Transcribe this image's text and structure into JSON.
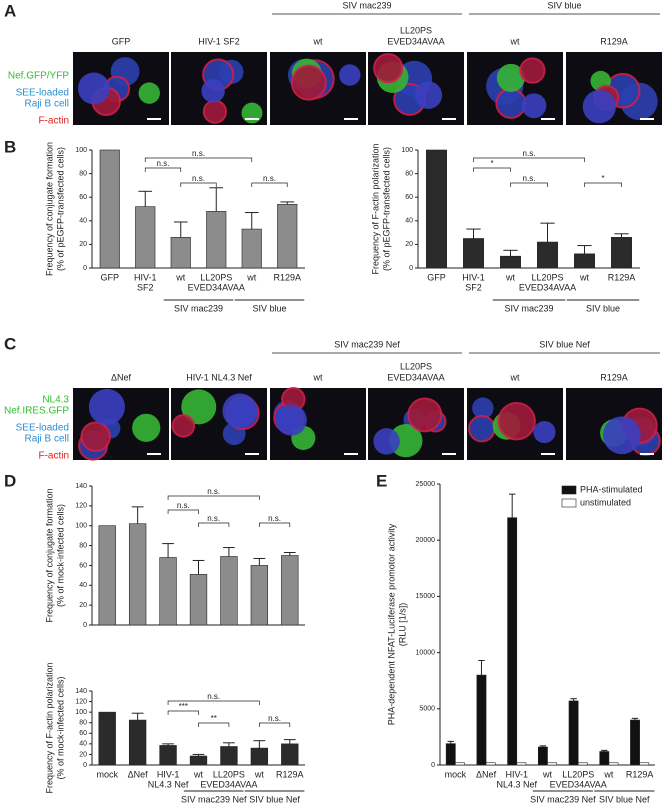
{
  "panels": {
    "a": "A",
    "b": "B",
    "c": "C",
    "d": "D",
    "e": "E"
  },
  "micrographs_a": {
    "groups": [
      "SIV mac239",
      "SIV blue"
    ],
    "labels": [
      [
        "GFP"
      ],
      [
        "HIV-1 SF2"
      ],
      [
        "wt"
      ],
      [
        "LL20PS",
        "EVED34AVAA"
      ],
      [
        "wt"
      ],
      [
        "R129A"
      ]
    ],
    "legend": [
      {
        "text": "Nef.GFP/YFP",
        "color": "#2fbf2f"
      },
      {
        "text": "SEE-loaded",
        "color": "#2a8fd0"
      },
      {
        "text": "Raji B cell",
        "color": "#2a8fd0"
      },
      {
        "text": "F-actin",
        "color": "#e02020"
      }
    ]
  },
  "micrographs_c": {
    "groups": [
      "SIV mac239 Nef",
      "SIV blue Nef"
    ],
    "labels": [
      [
        "ΔNef"
      ],
      [
        "HIV-1 NL4.3 Nef"
      ],
      [
        "wt"
      ],
      [
        "LL20PS",
        "EVED34AVAA"
      ],
      [
        "wt"
      ],
      [
        "R129A"
      ]
    ],
    "legend": [
      {
        "text": "NL4.3",
        "color": "#2fbf2f"
      },
      {
        "text": "Nef.IRES.GFP",
        "color": "#2fbf2f"
      },
      {
        "text": "SEE-loaded",
        "color": "#2a8fd0"
      },
      {
        "text": "Raji B cell",
        "color": "#2a8fd0"
      },
      {
        "text": "F-actin",
        "color": "#e02020"
      }
    ]
  },
  "chart_data": [
    {
      "type": "bar",
      "ylabel": [
        "Frequency of conjugate formation",
        "(% of pEGFP-transfected cells)"
      ],
      "categories": [
        [
          "GFP"
        ],
        [
          "HIV-1",
          "SF2"
        ],
        [
          "wt"
        ],
        [
          "LL20PS",
          "EVED34AVAA"
        ],
        [
          "wt"
        ],
        [
          "R129A"
        ]
      ],
      "groups": [
        "SIV mac239",
        "SIV blue"
      ],
      "values": [
        100,
        52,
        26,
        48,
        33,
        54
      ],
      "errors": [
        null,
        13,
        13,
        20,
        14,
        2
      ],
      "color": "#8c8c8c",
      "ylim": [
        0,
        100
      ],
      "yticks": [
        0,
        20,
        40,
        60,
        80,
        100
      ],
      "comparisons": [
        "n.s.",
        "n.s.",
        "n.s.",
        "n.s."
      ]
    },
    {
      "type": "bar",
      "ylabel": [
        "Frequency of F-actin polarization",
        "(% of pEGFP-transfected cells)"
      ],
      "categories": [
        [
          "GFP"
        ],
        [
          "HIV-1",
          "SF2"
        ],
        [
          "wt"
        ],
        [
          "LL20PS",
          "EVED34AVAA"
        ],
        [
          "wt"
        ],
        [
          "R129A"
        ]
      ],
      "groups": [
        "SIV mac239",
        "SIV blue"
      ],
      "values": [
        100,
        25,
        10,
        22,
        12,
        26
      ],
      "errors": [
        null,
        8,
        5,
        16,
        7,
        3
      ],
      "color": "#2b2b2b",
      "ylim": [
        0,
        100
      ],
      "yticks": [
        0,
        20,
        40,
        60,
        80,
        100
      ],
      "comparisons": [
        "n.s.",
        "*",
        "n.s.",
        "*"
      ]
    },
    {
      "type": "bar",
      "ylabel": [
        "Frequency of conjugate formation",
        "(% of mock-infected cells)"
      ],
      "values": [
        100,
        102,
        68,
        51,
        69,
        60,
        70
      ],
      "errors": [
        null,
        17,
        14,
        14,
        9,
        7,
        3
      ],
      "color": "#8c8c8c",
      "ylim": [
        0,
        140
      ],
      "yticks": [
        0,
        20,
        40,
        60,
        80,
        100,
        120,
        140
      ],
      "comparisons": [
        "n.s.",
        "n.s.",
        "n.s.",
        "n.s."
      ]
    },
    {
      "type": "bar",
      "ylabel": [
        "Frequency of F-actin polarization",
        "(% of mock-infected cells)"
      ],
      "categories": [
        [
          "mock"
        ],
        [
          "ΔNef"
        ],
        [
          "HIV-1",
          "NL4.3 Nef"
        ],
        [
          "wt"
        ],
        [
          "LL20PS",
          "EVED34AVAA"
        ],
        [
          "wt"
        ],
        [
          "R129A"
        ]
      ],
      "groups": [
        "SIV mac239 Nef",
        "SIV blue Nef"
      ],
      "values": [
        100,
        85,
        37,
        17,
        35,
        32,
        40
      ],
      "errors": [
        null,
        13,
        3,
        3,
        7,
        14,
        8
      ],
      "color": "#2b2b2b",
      "ylim": [
        0,
        140
      ],
      "yticks": [
        0,
        20,
        40,
        60,
        80,
        100,
        120,
        140
      ],
      "comparisons": [
        "n.s.",
        "***",
        "**",
        "n.s."
      ]
    },
    {
      "type": "bar",
      "ylabel": [
        "PHA-dependent NFAT-Luciferase promotor activity",
        "(RLU [1/s])"
      ],
      "categories": [
        [
          "mock"
        ],
        [
          "ΔNef"
        ],
        [
          "HIV-1",
          "NL4.3 Nef"
        ],
        [
          "wt"
        ],
        [
          "LL20PS",
          "EVED34AVAA"
        ],
        [
          "wt"
        ],
        [
          "R129A"
        ]
      ],
      "groups": [
        "SIV mac239 Nef",
        "SIV blue Nef"
      ],
      "series": [
        {
          "name": "PHA-stimulated",
          "color": "#111111",
          "values": [
            1900,
            8000,
            22000,
            1600,
            5700,
            1200,
            4000
          ],
          "errors": [
            200,
            1300,
            2100,
            100,
            200,
            100,
            150
          ]
        },
        {
          "name": "unstimulated",
          "color": "#ffffff",
          "values": [
            200,
            200,
            200,
            200,
            200,
            200,
            200
          ],
          "errors": [
            null,
            null,
            null,
            null,
            null,
            null,
            null
          ]
        }
      ],
      "ylim": [
        0,
        25000
      ],
      "yticks": [
        0,
        5000,
        10000,
        15000,
        20000,
        25000
      ]
    }
  ]
}
